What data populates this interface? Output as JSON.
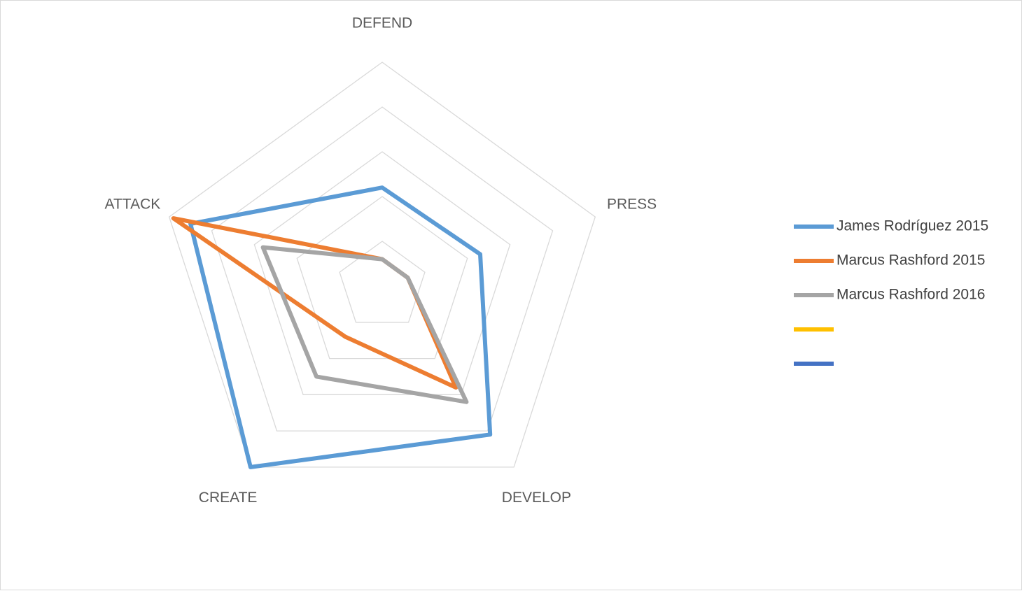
{
  "chart_data": {
    "type": "radar",
    "title": "",
    "axes": [
      "DEFEND",
      "PRESS",
      "DEVELOP",
      "CREATE",
      "ATTACK"
    ],
    "rlim": [
      0,
      5
    ],
    "grid_levels": [
      1,
      2,
      3,
      4,
      5
    ],
    "grid": true,
    "legend_position": "right",
    "series": [
      {
        "name": "James Rodríguez 2015",
        "color": "#5B9BD5",
        "values": [
          2.2,
          2.3,
          4.1,
          5.0,
          4.5
        ]
      },
      {
        "name": "Marcus Rashford 2015",
        "color": "#ED7D31",
        "values": [
          0.6,
          0.6,
          2.8,
          1.4,
          4.9
        ]
      },
      {
        "name": "Marcus Rashford 2016",
        "color": "#A5A5A5",
        "values": [
          0.6,
          0.6,
          3.2,
          2.5,
          2.8
        ]
      },
      {
        "name": "",
        "color": "#FFC000",
        "values": []
      },
      {
        "name": "",
        "color": "#4472C4",
        "values": []
      }
    ]
  }
}
